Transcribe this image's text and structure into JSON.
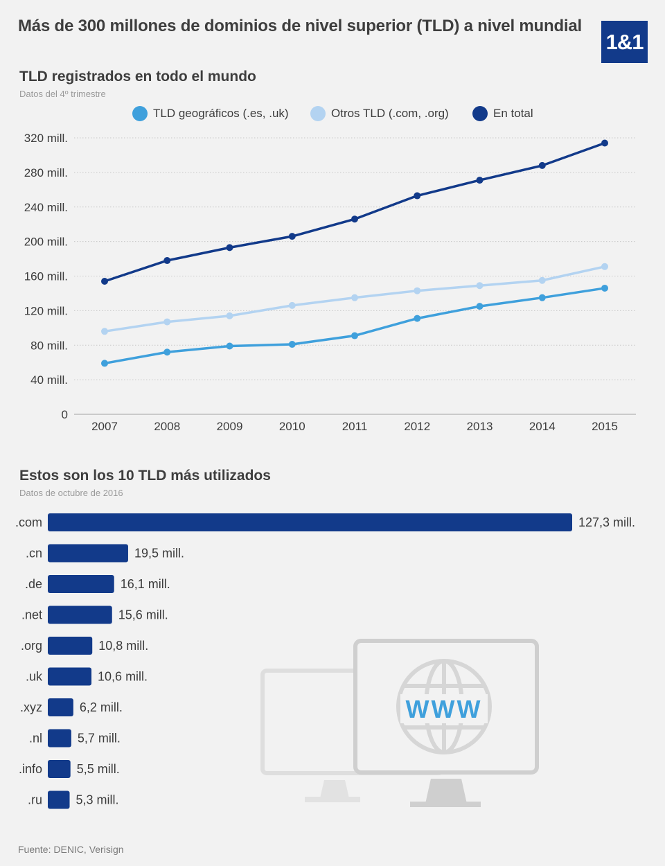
{
  "header": {
    "title": "Más de 300 millones de dominios de nivel superior (TLD) a nivel mundial",
    "logo": "1&1"
  },
  "line_section": {
    "title": "TLD registrados en todo el mundo",
    "subtitle": "Datos del 4º trimestre"
  },
  "bar_section": {
    "title": "Estos son los 10 TLD más utilizados",
    "subtitle": "Datos de octubre de 2016"
  },
  "footer": {
    "source": "Fuente: DENIC, Verisign"
  },
  "illustration": {
    "text": "WWW"
  },
  "colors": {
    "geo": "#3fa0dc",
    "otros": "#b3d3f1",
    "total": "#123a8a",
    "bar": "#123a8a",
    "grid": "#c8c8c8",
    "monitor": "#cfcfcf"
  },
  "chart_data": [
    {
      "type": "line",
      "title": "TLD registrados en todo el mundo",
      "subtitle": "Datos del 4º trimestre",
      "x": [
        "2007",
        "2008",
        "2009",
        "2010",
        "2011",
        "2012",
        "2013",
        "2014",
        "2015"
      ],
      "y_ticks": [
        {
          "value": 0,
          "label": "0"
        },
        {
          "value": 40,
          "label": "40 mill."
        },
        {
          "value": 80,
          "label": "80 mill."
        },
        {
          "value": 120,
          "label": "120 mill."
        },
        {
          "value": 160,
          "label": "160 mill."
        },
        {
          "value": 200,
          "label": "200 mill."
        },
        {
          "value": 240,
          "label": "240 mill."
        },
        {
          "value": 280,
          "label": "280 mill."
        },
        {
          "value": 320,
          "label": "320 mill."
        }
      ],
      "ylim": [
        0,
        320
      ],
      "grid": true,
      "legend_position": "top",
      "series": [
        {
          "name": "TLD geográficos (.es, .uk)",
          "color": "#3fa0dc",
          "values": [
            59,
            72,
            79,
            81,
            91,
            111,
            125,
            135,
            146
          ]
        },
        {
          "name": "Otros TLD (.com, .org)",
          "color": "#b3d3f1",
          "values": [
            96,
            107,
            114,
            126,
            135,
            143,
            149,
            155,
            171
          ]
        },
        {
          "name": "En total",
          "color": "#123a8a",
          "values": [
            154,
            178,
            193,
            206,
            226,
            253,
            271,
            288,
            314
          ]
        }
      ]
    },
    {
      "type": "bar",
      "orientation": "horizontal",
      "title": "Estos son los 10 TLD más utilizados",
      "subtitle": "Datos de octubre de 2016",
      "categories": [
        ".com",
        ".cn",
        ".de",
        ".net",
        ".org",
        ".uk",
        ".xyz",
        ".nl",
        ".info",
        ".ru"
      ],
      "values": [
        127.3,
        19.5,
        16.1,
        15.6,
        10.8,
        10.6,
        6.2,
        5.7,
        5.5,
        5.3
      ],
      "labels": [
        "127,3 mill.",
        "19,5 mill.",
        "16,1 mill.",
        "15,6 mill.",
        "10,8 mill.",
        "10,6 mill.",
        "6,2 mill.",
        "5,7 mill.",
        "5,5 mill.",
        "5,3 mill."
      ]
    }
  ]
}
